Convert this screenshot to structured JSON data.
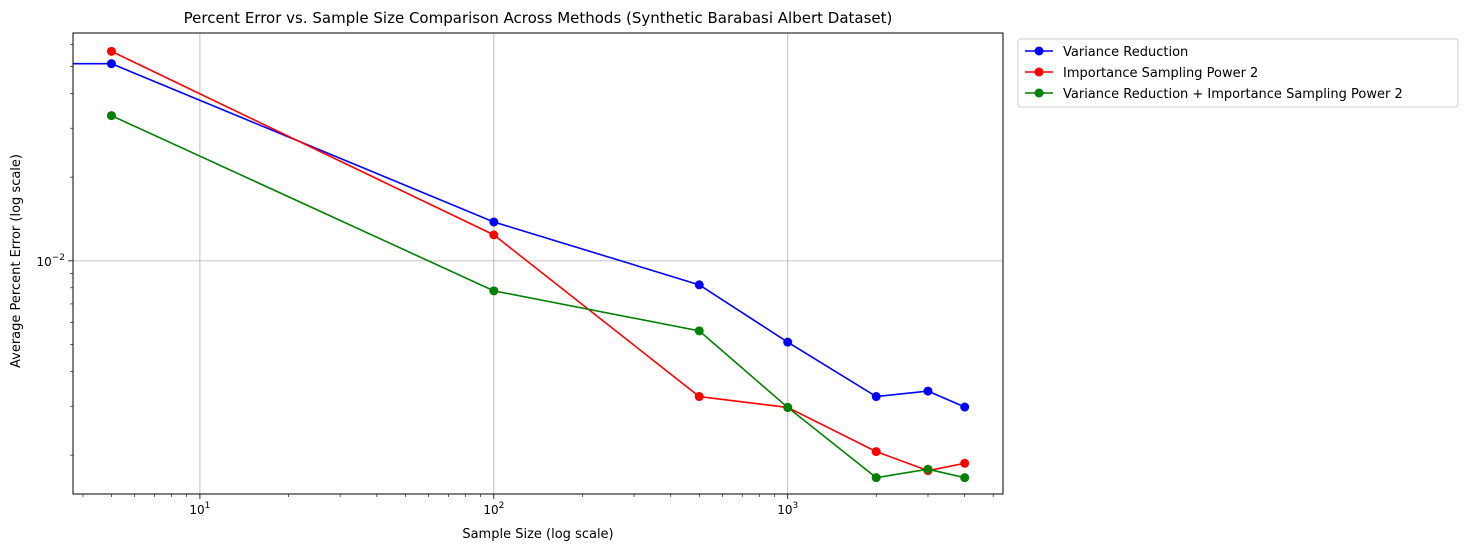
{
  "chart_data": {
    "type": "line",
    "title": "Percent Error vs. Sample Size Comparison Across Methods (Synthetic Barabasi Albert Dataset)",
    "xlabel": "Sample Size (log scale)",
    "ylabel": "Average Percent Error (log scale)",
    "xscale": "log",
    "yscale": "log",
    "xlim": [
      3.7,
      5400
    ],
    "ylim": [
      0.00145,
      0.066
    ],
    "x_ticks": [
      {
        "value": 10,
        "base": "10",
        "exp": "1"
      },
      {
        "value": 100,
        "base": "10",
        "exp": "2"
      },
      {
        "value": 1000,
        "base": "10",
        "exp": "3"
      }
    ],
    "y_ticks": [
      {
        "value": 0.01,
        "base": "10",
        "exp": "−2"
      }
    ],
    "grid": true,
    "legend_position": "outside-top-right",
    "series": [
      {
        "name": "Variance Reduction",
        "color": "#0000ff",
        "x": [
          5,
          100,
          500,
          1000,
          2000,
          3000,
          4000
        ],
        "y": [
          0.0512,
          0.0138,
          0.0082,
          0.0051,
          0.00325,
          0.0034,
          0.00298
        ]
      },
      {
        "name": "Importance Sampling Power 2",
        "color": "#ff0000",
        "x": [
          5,
          100,
          500,
          1000,
          2000,
          3000,
          4000
        ],
        "y": [
          0.0567,
          0.0124,
          0.00325,
          0.00297,
          0.00206,
          0.00176,
          0.00187
        ]
      },
      {
        "name": "Variance Reduction + Importance Sampling Power 2",
        "color": "#008000",
        "x": [
          5,
          100,
          500,
          1000,
          2000,
          3000,
          4000
        ],
        "y": [
          0.0333,
          0.0078,
          0.0056,
          0.00297,
          0.00166,
          0.00178,
          0.00166
        ]
      }
    ],
    "extra_segment": {
      "series_index": 0,
      "from_x": 3.7,
      "to_x": 5,
      "y": 0.0512
    }
  }
}
